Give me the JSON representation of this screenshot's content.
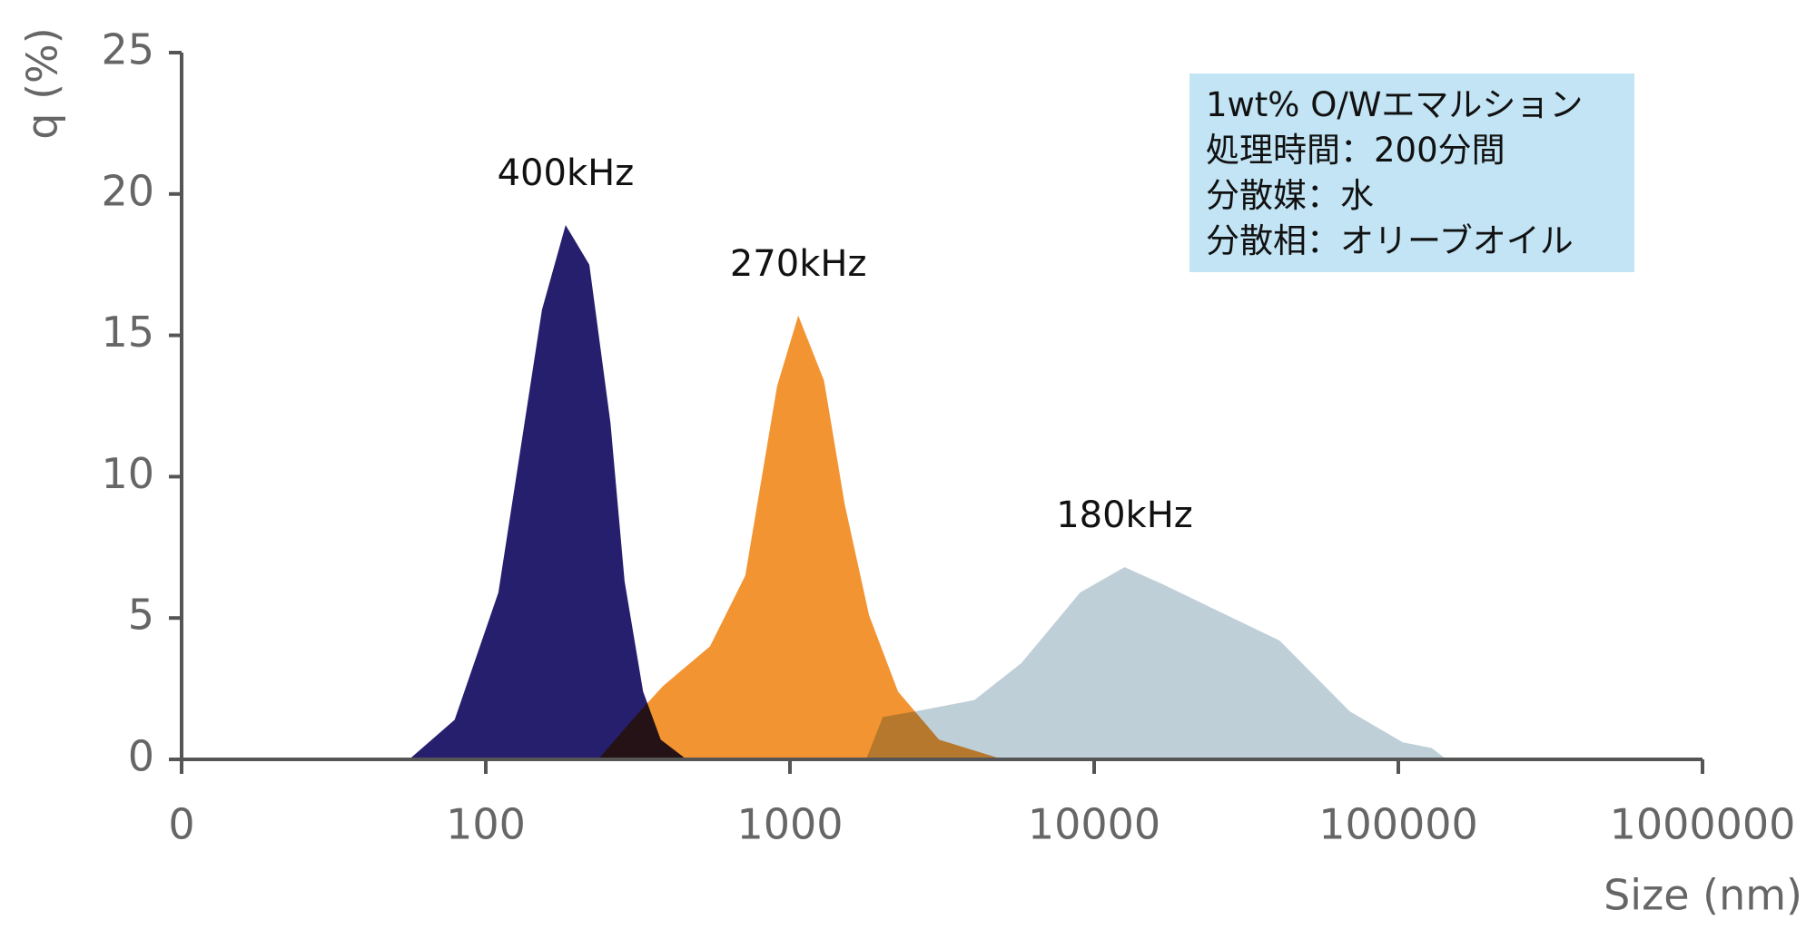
{
  "chart_data": {
    "type": "area",
    "xlabel": "Size (nm)",
    "ylabel": "q (%)",
    "log_x": true,
    "grid": false,
    "xlim": [
      10,
      1000000
    ],
    "xticks": [
      {
        "value": 10,
        "label": "0"
      },
      100,
      1000,
      10000,
      100000,
      1000000
    ],
    "ylim": [
      0,
      25
    ],
    "yticks": [
      0,
      5,
      10,
      15,
      20,
      25
    ],
    "info_box": [
      "1wt% O/Wエマルション",
      "処理時間：200分間",
      "分散媒：水",
      "分散相：オリーブオイル"
    ],
    "series": [
      {
        "name": "180kHz",
        "color": "#bfcfd8",
        "x": [
          1780,
          2020,
          2590,
          4040,
          5760,
          8990,
          12590,
          16750,
          26120,
          40740,
          69200,
          103500,
          128800,
          144000
        ],
        "values": [
          0,
          1.5,
          1.7,
          2.1,
          3.4,
          5.9,
          6.8,
          6.2,
          5.2,
          4.2,
          1.7,
          0.6,
          0.4,
          0
        ]
      },
      {
        "name": "270kHz",
        "color": "#f39433",
        "x": [
          234,
          321,
          383,
          546,
          713,
          907,
          1065,
          1294,
          1515,
          1820,
          2266,
          3090,
          5010
        ],
        "values": [
          0,
          1.7,
          2.6,
          4.0,
          6.5,
          13.2,
          15.7,
          13.4,
          9.0,
          5.1,
          2.4,
          0.7,
          0
        ]
      },
      {
        "name": "400kHz",
        "color": "#261f6e",
        "x": [
          56,
          79,
          110,
          153,
          183,
          219,
          257,
          286,
          329,
          376,
          457
        ],
        "values": [
          0,
          1.4,
          5.9,
          15.9,
          18.9,
          17.5,
          11.9,
          6.3,
          2.4,
          0.7,
          0
        ]
      }
    ]
  }
}
